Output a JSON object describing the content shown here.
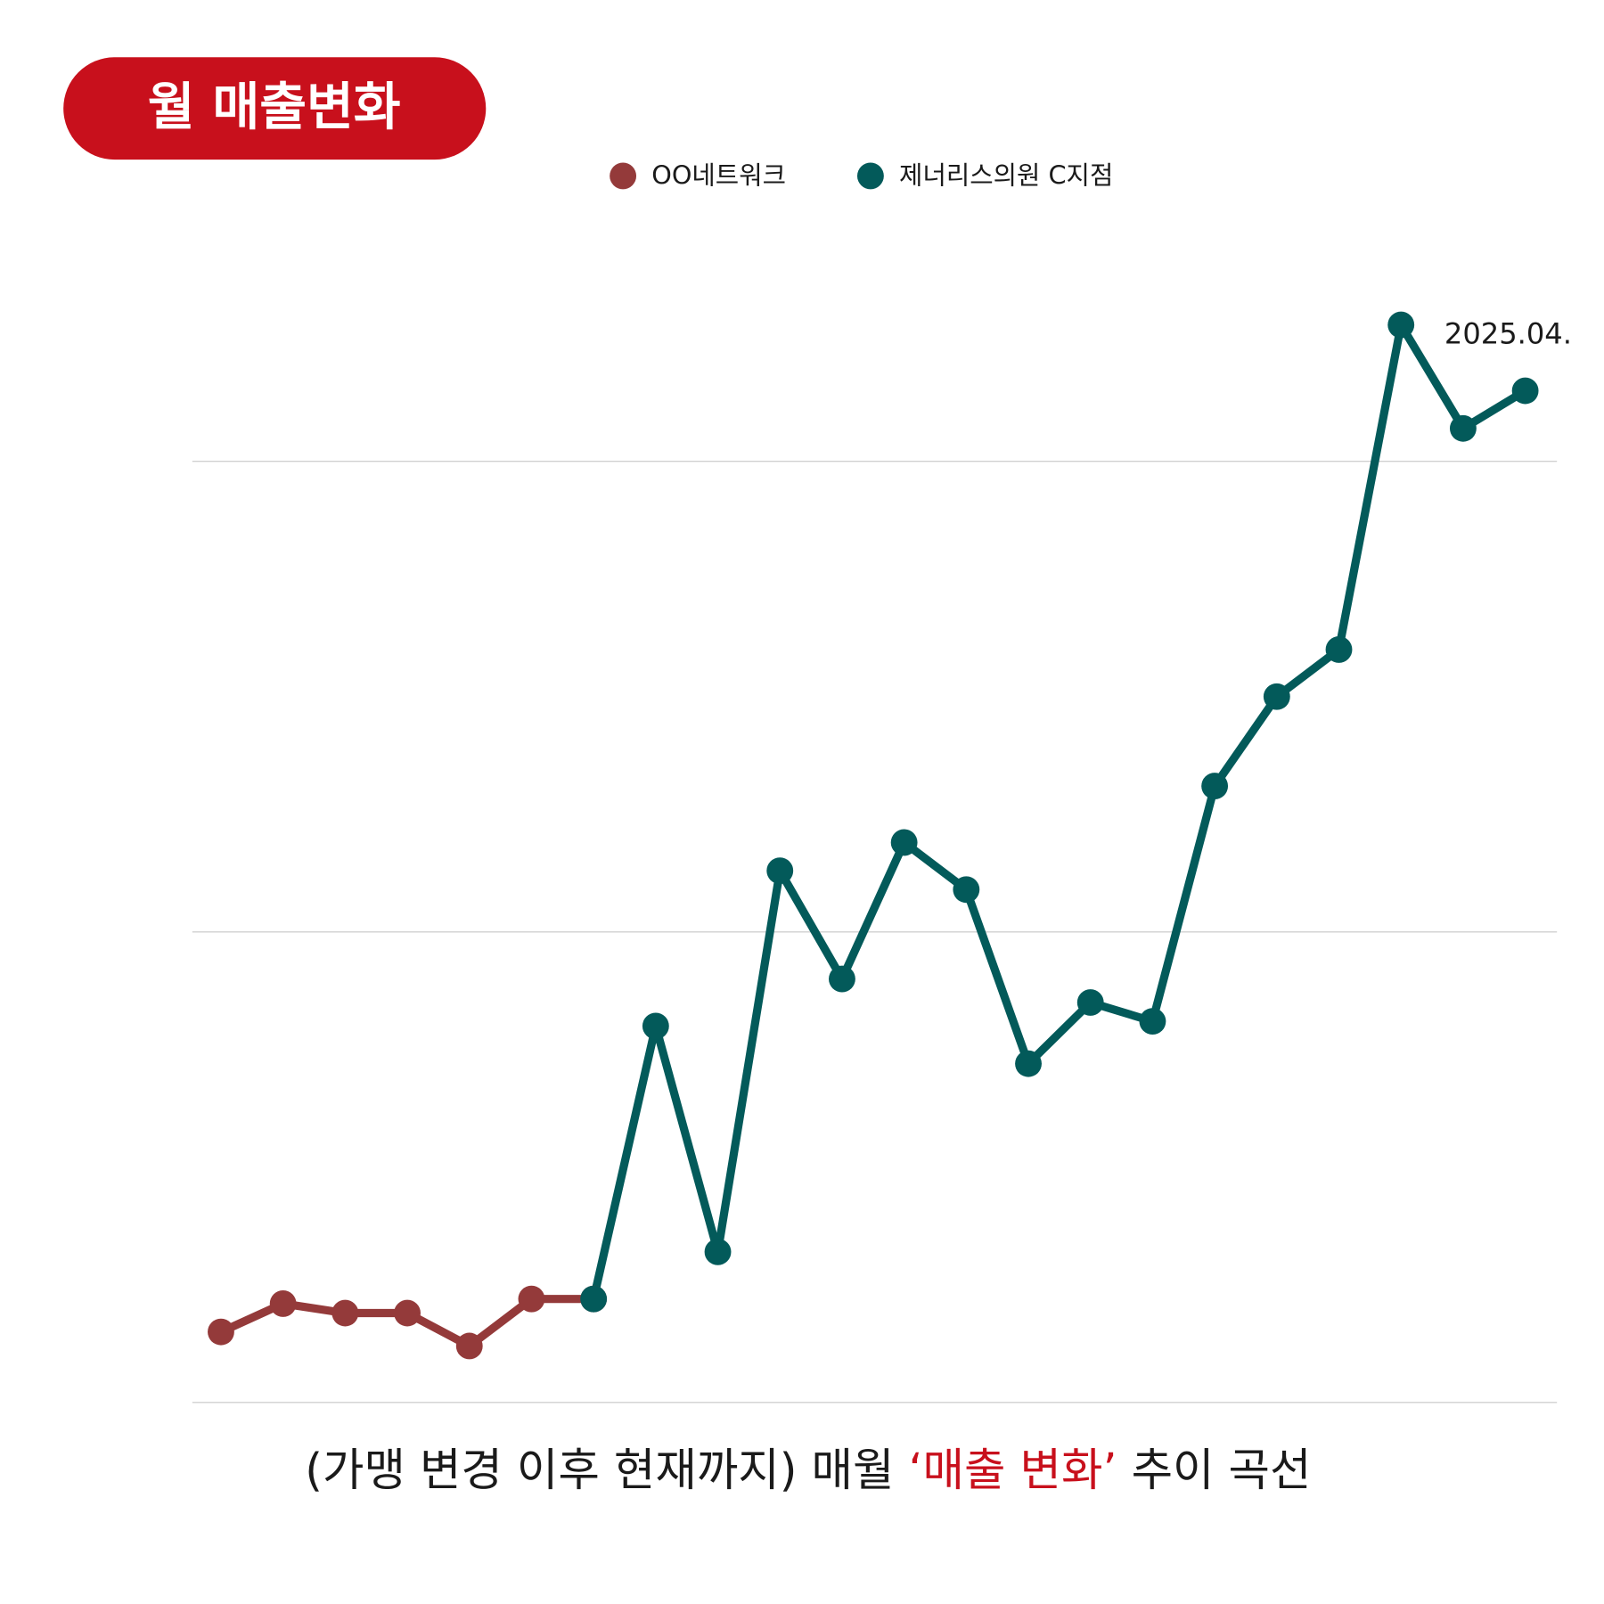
{
  "chart_data": {
    "type": "line",
    "title": "월 매출변화",
    "categories": [
      null,
      null,
      null,
      null,
      null,
      null,
      null,
      null,
      null,
      null,
      null,
      null,
      null,
      null,
      null,
      null,
      null,
      null,
      null,
      null,
      null,
      null
    ],
    "series": [
      {
        "name": "OO네트워크",
        "color": "#943a3a",
        "values": [
          0.15,
          0.21,
          0.19,
          0.19,
          0.12,
          0.22,
          0.22,
          null,
          null,
          null,
          null,
          null,
          null,
          null,
          null,
          null,
          null,
          null,
          null,
          null,
          null,
          null
        ]
      },
      {
        "name": "제너리스의원 C지점",
        "color": "#035a5a",
        "values": [
          null,
          null,
          null,
          null,
          null,
          null,
          0.22,
          0.8,
          0.32,
          1.13,
          0.9,
          1.19,
          1.09,
          0.72,
          0.85,
          0.81,
          1.31,
          1.5,
          1.6,
          2.29,
          2.07,
          2.15
        ]
      }
    ],
    "ylim": [
      0,
      2.5
    ],
    "yticks": [
      0,
      1,
      2
    ],
    "grid": true,
    "annotation": "2025.04.",
    "caption": [
      "(가맹 변경 이후 현재까지) 매월",
      "‘매출 변화’",
      "추이 곡선"
    ],
    "caption_colors": [
      "#1a1a1a",
      "#c8101c",
      "#1a1a1a"
    ]
  }
}
